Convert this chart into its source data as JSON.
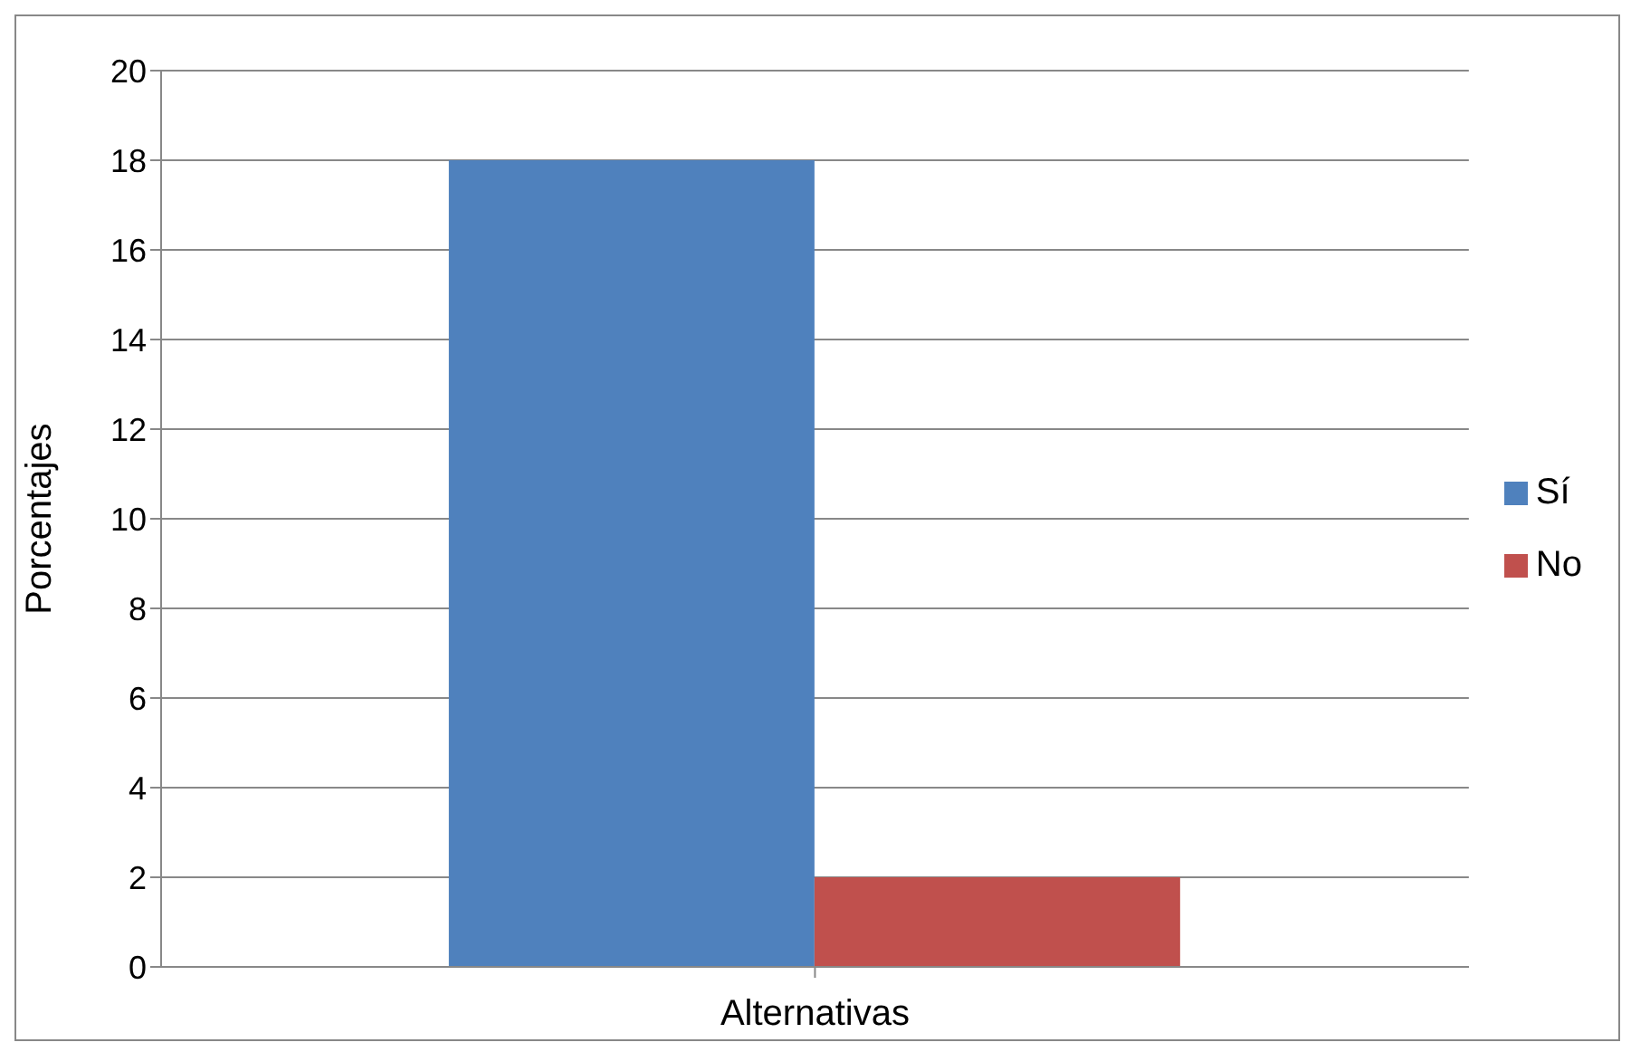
{
  "chart_data": {
    "type": "bar",
    "xlabel": "Alternativas",
    "ylabel": "Porcentajes",
    "categories": [
      null
    ],
    "series": [
      {
        "name": "Sí",
        "color": "#4f81bd",
        "values": [
          18
        ]
      },
      {
        "name": "No",
        "color": "#c0504d",
        "values": [
          2
        ]
      }
    ],
    "ylim": [
      0,
      20
    ],
    "yticks": [
      0,
      2,
      4,
      6,
      8,
      10,
      12,
      14,
      16,
      18,
      20
    ],
    "grid": "y",
    "legend": "right"
  }
}
